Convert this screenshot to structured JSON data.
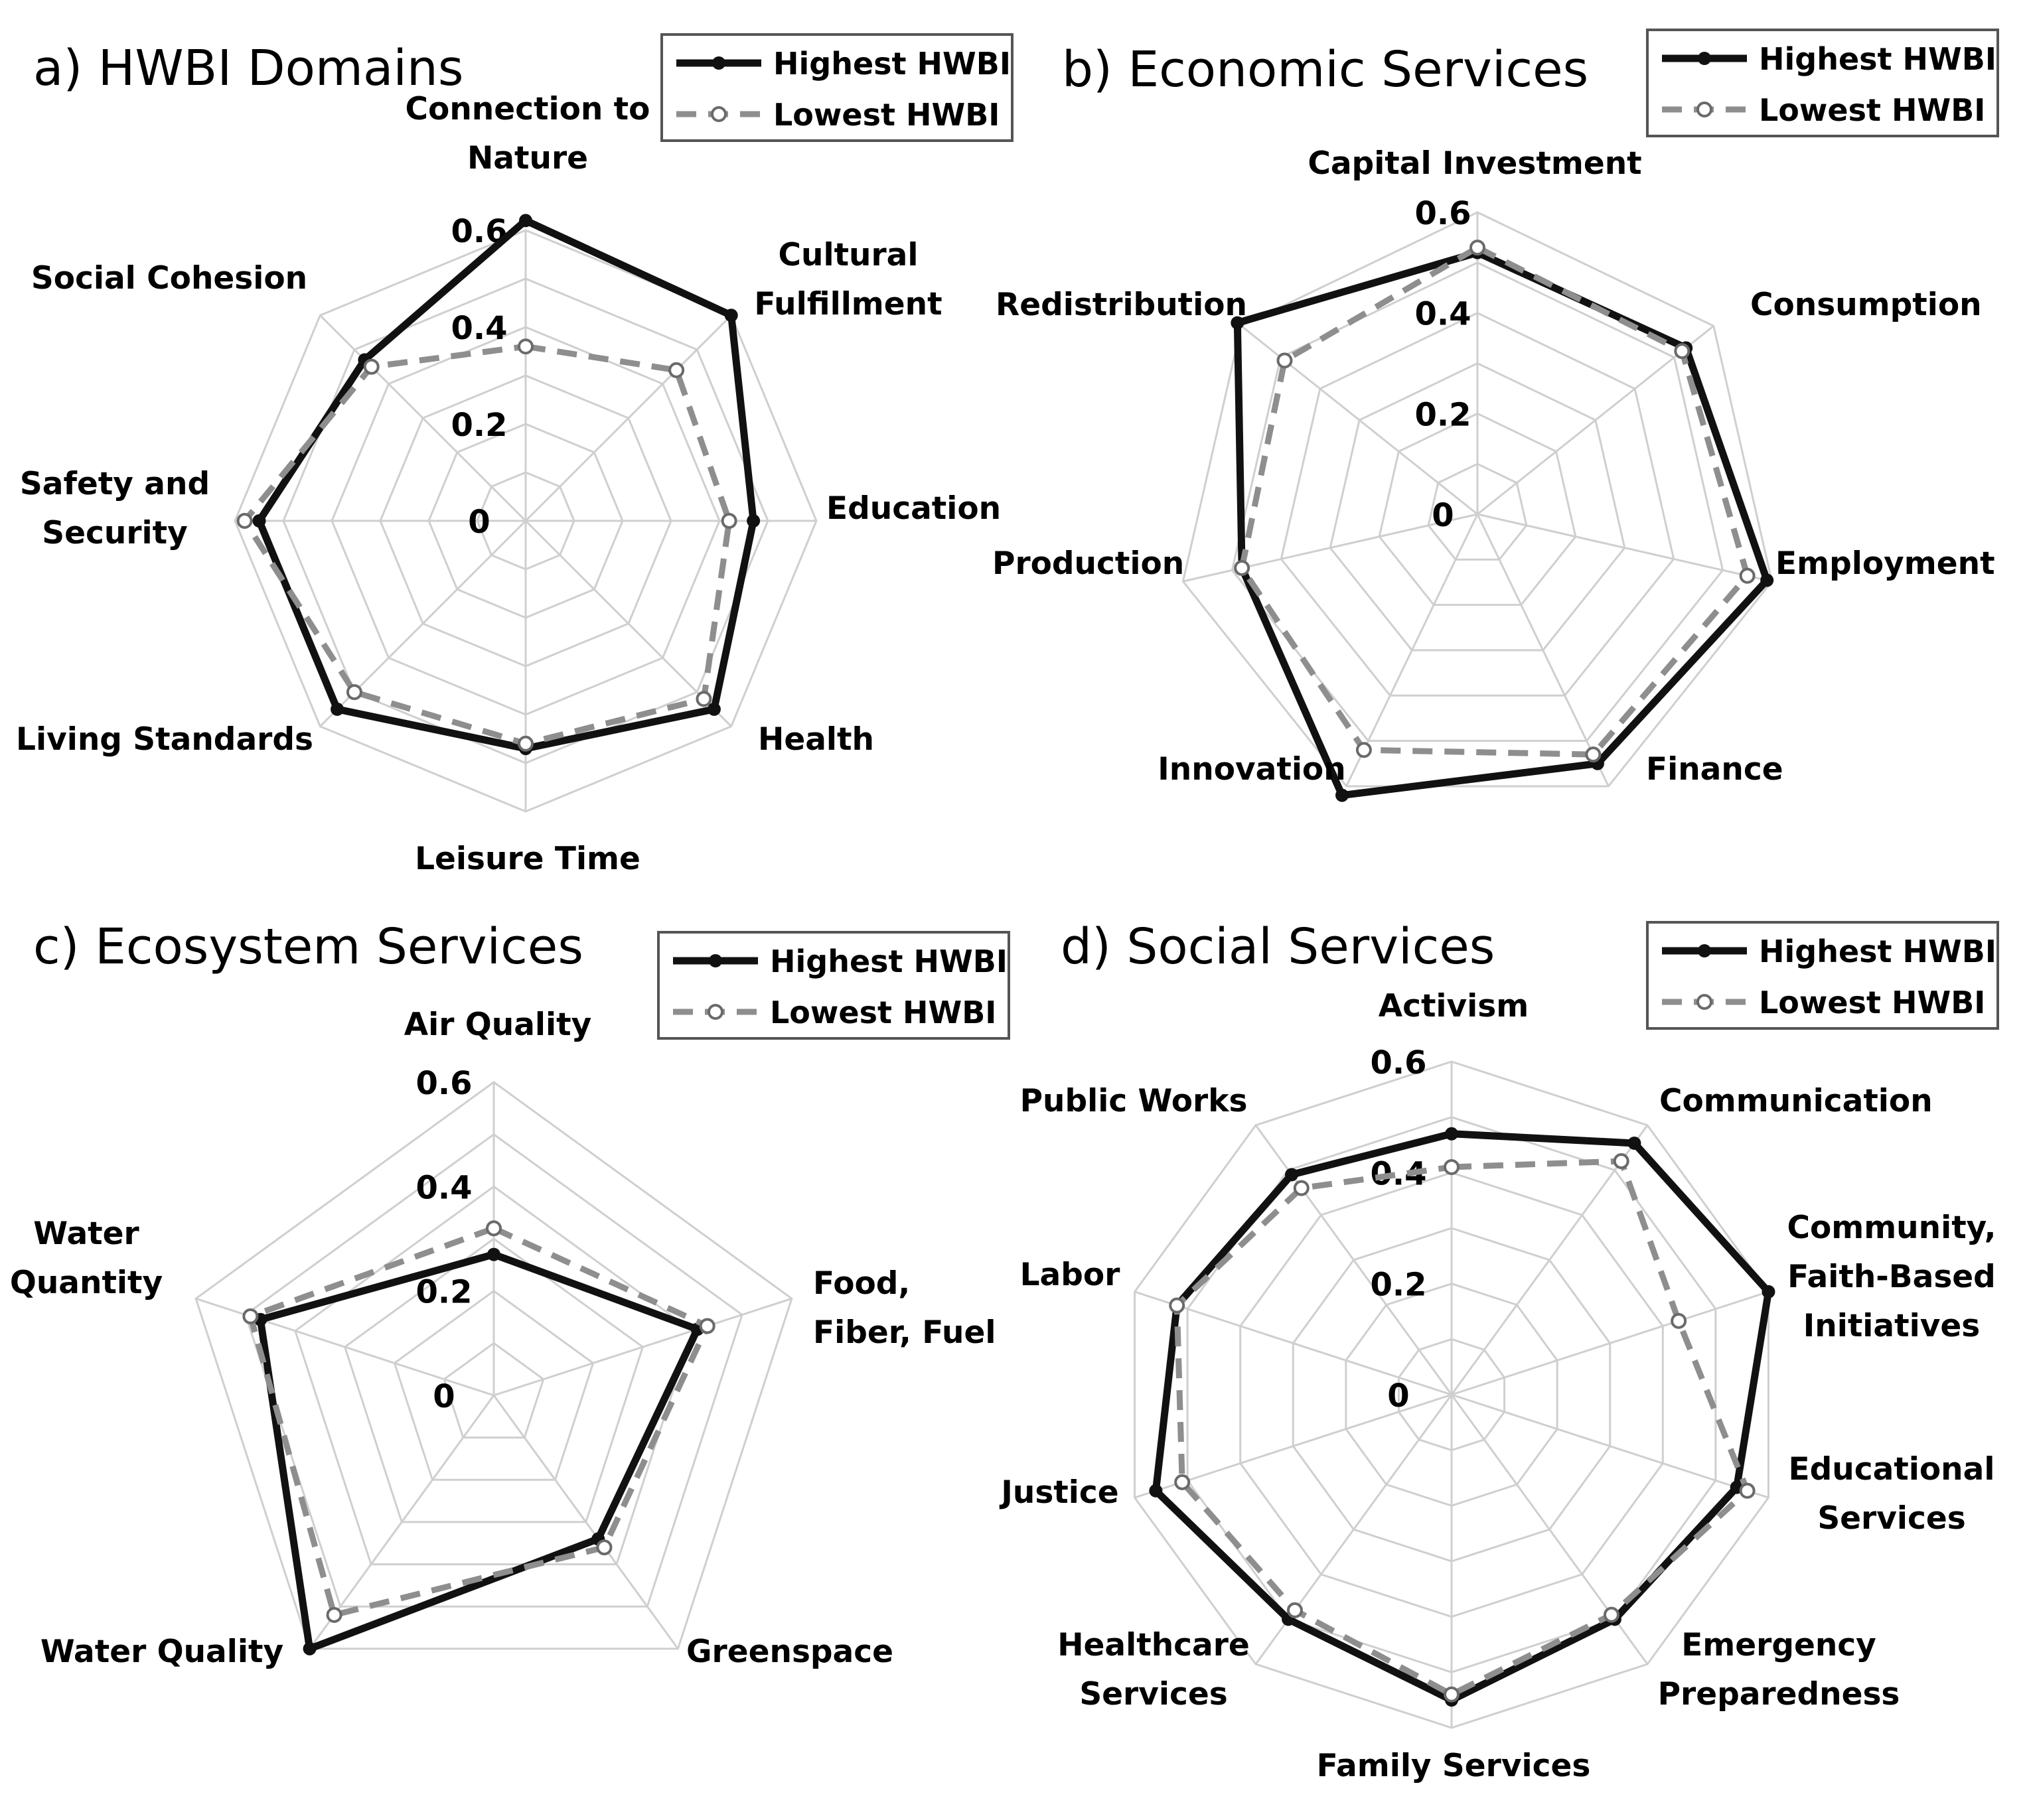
{
  "legend": {
    "high": "Highest HWBI",
    "low": "Lowest HWBI"
  },
  "colors": {
    "high": "#111111",
    "low": "#8e8e8e",
    "grid": "#cfcfcf"
  },
  "chart_data": [
    {
      "type": "radar",
      "title": "a) HWBI Domains",
      "rlim": [
        0,
        0.6
      ],
      "ticks": [
        "0",
        "0.2",
        "0.4",
        "0.6"
      ],
      "categories": [
        [
          "Connection to",
          "Nature"
        ],
        [
          "Cultural",
          "Fulfillment"
        ],
        [
          "Education"
        ],
        [
          "Health"
        ],
        [
          "Leisure Time"
        ],
        [
          "Living Standards"
        ],
        [
          "Safety and",
          "Security"
        ],
        [
          "Social Cohesion"
        ]
      ],
      "series": [
        {
          "name": "Highest HWBI",
          "values": [
            0.62,
            0.6,
            0.47,
            0.55,
            0.47,
            0.55,
            0.55,
            0.47
          ]
        },
        {
          "name": "Lowest HWBI",
          "values": [
            0.36,
            0.44,
            0.42,
            0.52,
            0.46,
            0.5,
            0.58,
            0.45
          ]
        }
      ]
    },
    {
      "type": "radar",
      "title": "b) Economic Services",
      "rlim": [
        0,
        0.6
      ],
      "ticks": [
        "0",
        "0.2",
        "0.4",
        "0.6"
      ],
      "categories": [
        [
          "Capital Investment"
        ],
        [
          "Consumption"
        ],
        [
          "Employment"
        ],
        [
          "Finance"
        ],
        [
          "Innovation"
        ],
        [
          "Production"
        ],
        [
          "Redistribution"
        ]
      ],
      "series": [
        {
          "name": "Highest HWBI",
          "values": [
            0.52,
            0.53,
            0.59,
            0.55,
            0.62,
            0.48,
            0.61
          ]
        },
        {
          "name": "Lowest HWBI",
          "values": [
            0.53,
            0.52,
            0.55,
            0.53,
            0.52,
            0.48,
            0.49
          ]
        }
      ]
    },
    {
      "type": "radar",
      "title": "c) Ecosystem Services",
      "rlim": [
        0,
        0.6
      ],
      "ticks": [
        "0",
        "0.2",
        "0.4",
        "0.6"
      ],
      "categories": [
        [
          "Air Quality"
        ],
        [
          "Food,",
          "Fiber, Fuel"
        ],
        [
          "Greenspace"
        ],
        [
          "Water Quality"
        ],
        [
          "Water",
          "Quantity"
        ]
      ],
      "series": [
        {
          "name": "Highest HWBI",
          "values": [
            0.27,
            0.41,
            0.34,
            0.6,
            0.47
          ]
        },
        {
          "name": "Lowest HWBI",
          "values": [
            0.32,
            0.43,
            0.36,
            0.52,
            0.49
          ]
        }
      ]
    },
    {
      "type": "radar",
      "title": "d) Social Services",
      "rlim": [
        0,
        0.6
      ],
      "ticks": [
        "0",
        "0.2",
        "0.4",
        "0.6"
      ],
      "categories": [
        [
          "Activism"
        ],
        [
          "Communication"
        ],
        [
          "Community,",
          "Faith-Based",
          "Initiatives"
        ],
        [
          "Educational",
          "Services"
        ],
        [
          "Emergency",
          "Preparedness"
        ],
        [
          "Family Services"
        ],
        [
          "Healthcare",
          "Services"
        ],
        [
          "Justice"
        ],
        [
          "Labor"
        ],
        [
          "Public Works"
        ]
      ],
      "series": [
        {
          "name": "Highest HWBI",
          "values": [
            0.47,
            0.56,
            0.6,
            0.54,
            0.5,
            0.55,
            0.5,
            0.56,
            0.52,
            0.49
          ]
        },
        {
          "name": "Lowest HWBI",
          "values": [
            0.41,
            0.52,
            0.43,
            0.56,
            0.49,
            0.54,
            0.48,
            0.51,
            0.52,
            0.46
          ]
        }
      ]
    }
  ]
}
